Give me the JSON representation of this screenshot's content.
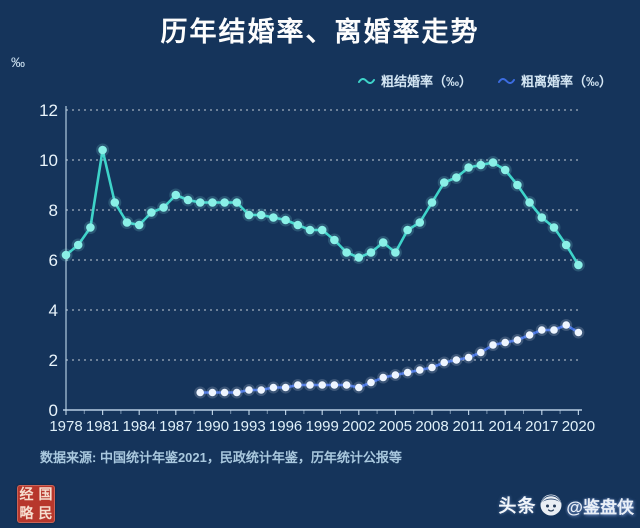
{
  "title": "历年结婚率、离婚率走势",
  "y_axis_unit": "‰",
  "legend": [
    {
      "label": "粗结婚率（‰）",
      "color": "#3ed3c9"
    },
    {
      "label": "粗离婚率（‰）",
      "color": "#3c6ce0"
    }
  ],
  "source": "数据来源: 中国统计年鉴2021，民政统计年鉴，历年统计公报等",
  "seal": {
    "chars": [
      "经",
      "国",
      "略",
      "民"
    ]
  },
  "watermark": {
    "brand": "头条",
    "handle": "@鉴盘侠"
  },
  "colors": {
    "background": "#15345b",
    "title_text": "#fdfdfd",
    "axis_text": "#e3f1fa",
    "gridline": "#ffffff",
    "marriage_line": "#3ed3c9",
    "marriage_dot": "#8af0e7",
    "divorce_line": "#3c6ce0",
    "divorce_dot": "#eef5ff",
    "seal_red": "#b7372c"
  },
  "chart_data": {
    "type": "line",
    "title": "历年结婚率、离婚率走势",
    "xlabel": "",
    "ylabel": "‰",
    "ylim": [
      0,
      12
    ],
    "y_ticks": [
      0,
      2,
      4,
      6,
      8,
      10,
      12
    ],
    "x_tick_labels": [
      "1978",
      "1981",
      "1984",
      "1987",
      "1990",
      "1993",
      "1996",
      "1999",
      "2002",
      "2005",
      "2008",
      "2011",
      "2014",
      "2017",
      "2020"
    ],
    "grid": "horizontal-dashed",
    "legend_position": "top-right",
    "series": [
      {
        "name": "粗结婚率（‰）",
        "color": "#3ed3c9",
        "dot_color": "#8af0e7",
        "years": [
          1978,
          1979,
          1980,
          1981,
          1982,
          1983,
          1984,
          1985,
          1986,
          1987,
          1988,
          1989,
          1990,
          1991,
          1992,
          1993,
          1994,
          1995,
          1996,
          1997,
          1998,
          1999,
          2000,
          2001,
          2002,
          2003,
          2004,
          2005,
          2006,
          2007,
          2008,
          2009,
          2010,
          2011,
          2012,
          2013,
          2014,
          2015,
          2016,
          2017,
          2018,
          2019,
          2020
        ],
        "values": [
          6.2,
          6.6,
          7.3,
          10.4,
          8.3,
          7.5,
          7.4,
          7.9,
          8.1,
          8.6,
          8.4,
          8.3,
          8.3,
          8.3,
          8.3,
          7.8,
          7.8,
          7.7,
          7.6,
          7.4,
          7.2,
          7.2,
          6.8,
          6.3,
          6.1,
          6.3,
          6.7,
          6.3,
          7.2,
          7.5,
          8.3,
          9.1,
          9.3,
          9.7,
          9.8,
          9.9,
          9.6,
          9.0,
          8.3,
          7.7,
          7.3,
          6.6,
          5.8
        ]
      },
      {
        "name": "粗离婚率（‰）",
        "color": "#3c6ce0",
        "dot_color": "#eef5ff",
        "years": [
          1989,
          1990,
          1991,
          1992,
          1993,
          1994,
          1995,
          1996,
          1997,
          1998,
          1999,
          2000,
          2001,
          2002,
          2003,
          2004,
          2005,
          2006,
          2007,
          2008,
          2009,
          2010,
          2011,
          2012,
          2013,
          2014,
          2015,
          2016,
          2017,
          2018,
          2019,
          2020
        ],
        "values": [
          0.7,
          0.7,
          0.7,
          0.7,
          0.8,
          0.8,
          0.9,
          0.9,
          1.0,
          1.0,
          1.0,
          1.0,
          1.0,
          0.9,
          1.1,
          1.3,
          1.4,
          1.5,
          1.6,
          1.7,
          1.9,
          2.0,
          2.1,
          2.3,
          2.6,
          2.7,
          2.8,
          3.0,
          3.2,
          3.2,
          3.4,
          3.1
        ]
      }
    ]
  }
}
